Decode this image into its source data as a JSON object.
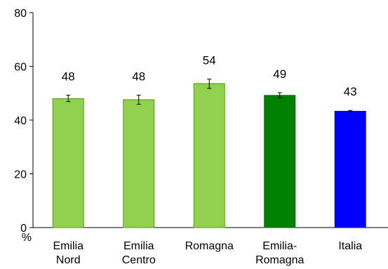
{
  "chart_data": {
    "type": "bar",
    "title": "",
    "xlabel": "",
    "ylabel": "%",
    "ylim": [
      0,
      80
    ],
    "yticks": [
      0,
      20,
      40,
      60,
      80
    ],
    "grid": false,
    "categories": [
      [
        "Emilia",
        "Nord"
      ],
      [
        "Emilia",
        "Centro"
      ],
      [
        "Romagna"
      ],
      [
        "Emilia-",
        "Romagna"
      ],
      [
        "Italia"
      ]
    ],
    "values": [
      48.0,
      47.6,
      53.6,
      49.2,
      43.3
    ],
    "error_low": [
      46.9,
      45.9,
      51.8,
      48.3,
      43.0
    ],
    "error_high": [
      49.3,
      49.3,
      55.3,
      50.2,
      43.6
    ],
    "data_labels": [
      "48",
      "48",
      "54",
      "49",
      "43"
    ],
    "colors": [
      "#92d050",
      "#92d050",
      "#92d050",
      "#008000",
      "#0000ff"
    ],
    "edge_colors": [
      "#4e9a06",
      "#4e9a06",
      "#4e9a06",
      "#006400",
      "#0000cc"
    ]
  }
}
